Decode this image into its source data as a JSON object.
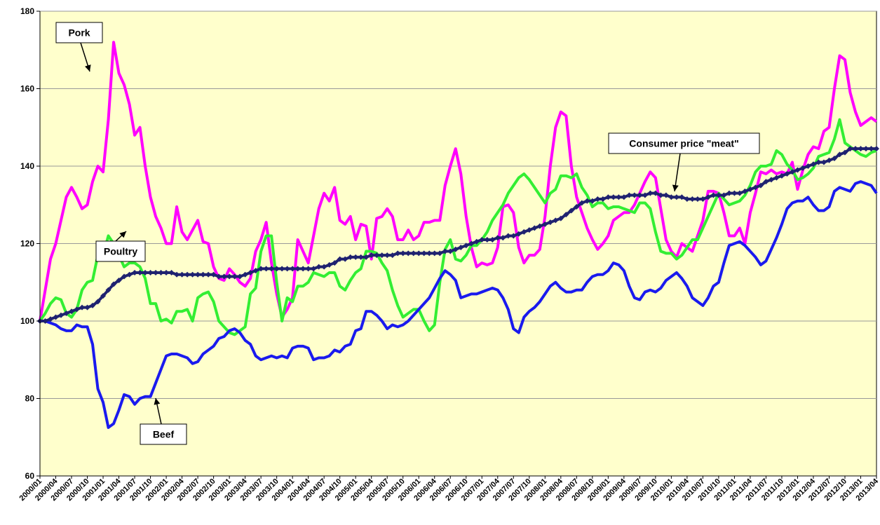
{
  "chart_data": {
    "type": "line",
    "categories": [
      "2000/01",
      null,
      null,
      "2000/04",
      null,
      null,
      "2000/07",
      null,
      null,
      "2000/10",
      null,
      null,
      "2001/01",
      null,
      null,
      "2001/04",
      null,
      null,
      "2001/07",
      null,
      null,
      "2001/10",
      null,
      null,
      "2002/01",
      null,
      null,
      "2002/04",
      null,
      null,
      "2002/07",
      null,
      null,
      "2002/10",
      null,
      null,
      "2003/01",
      null,
      null,
      "2003/04",
      null,
      null,
      "2003/07",
      null,
      null,
      "2003/10",
      null,
      null,
      "2004/01",
      null,
      null,
      "2004/04",
      null,
      null,
      "2004/07",
      null,
      null,
      "2004/10",
      null,
      null,
      "2005/01",
      null,
      null,
      "2005/04",
      null,
      null,
      "2005/07",
      null,
      null,
      "2005/10",
      null,
      null,
      "2006/01",
      null,
      null,
      "2006/04",
      null,
      null,
      "2006/07",
      null,
      null,
      "2006/10",
      null,
      null,
      "2007/01",
      null,
      null,
      "2007/04",
      null,
      null,
      "2007/07",
      null,
      null,
      "2007/10",
      null,
      null,
      "2008/01",
      null,
      null,
      "2008/04",
      null,
      null,
      "2008/07",
      null,
      null,
      "2008/10",
      null,
      null,
      "2009/01",
      null,
      null,
      "2009/04",
      null,
      null,
      "2009/07",
      null,
      null,
      "2009/10",
      null,
      null,
      "2010/01",
      null,
      null,
      "2010/04",
      null,
      null,
      "2010/07",
      null,
      null,
      "2010/10",
      null,
      null,
      "2011/01",
      null,
      null,
      "2011/04",
      null,
      null,
      "2011/07",
      null,
      null,
      "2011/10",
      null,
      null,
      "2012/01",
      null,
      null,
      "2012/04",
      null,
      null,
      "2012/07",
      null,
      null,
      "2012/10",
      null,
      null,
      "2013/01",
      null,
      null,
      "2013/04"
    ],
    "series": [
      {
        "name": "Pork",
        "color": "#ff00ff",
        "values": [
          100,
          108,
          116,
          120,
          126,
          132,
          134.5,
          132,
          129,
          130,
          136,
          140,
          138.5,
          152,
          172,
          164,
          161,
          156,
          148,
          150,
          140,
          132,
          127,
          124,
          120,
          120,
          129.5,
          123,
          121,
          123.5,
          126,
          120.5,
          120,
          114,
          111,
          110.5,
          113.5,
          112,
          110,
          109,
          111,
          118,
          121,
          125.5,
          115,
          107,
          101,
          103,
          106,
          121,
          118,
          115,
          122,
          129,
          133,
          131,
          134.5,
          126,
          125,
          127,
          121,
          125,
          124.5,
          116,
          126.5,
          127,
          129,
          127,
          121,
          121,
          123.5,
          121,
          122,
          125.5,
          125.5,
          126,
          126,
          135,
          140,
          144.5,
          138,
          127,
          119,
          114,
          115,
          114.5,
          115,
          119,
          129.5,
          130,
          128,
          119,
          115,
          117,
          117,
          118.5,
          127,
          140,
          150,
          154,
          153,
          140,
          132,
          128,
          124,
          121,
          118.5,
          120,
          122,
          126,
          127,
          128,
          128,
          130,
          133,
          136,
          138.5,
          137,
          129,
          121,
          118,
          116.5,
          120,
          119,
          118,
          122,
          126,
          133.5,
          133.5,
          133,
          128,
          122,
          122,
          124,
          120,
          128,
          133,
          138.5,
          138,
          139,
          138,
          138.5,
          138,
          141,
          134,
          139,
          143,
          145,
          144.5,
          149,
          150,
          160,
          168.5,
          167.5,
          159,
          154,
          150.5,
          151.5,
          152.5,
          151.5
        ]
      },
      {
        "name": "Poultry",
        "color": "#33ee33",
        "values": [
          100,
          102,
          104.5,
          106,
          105.5,
          102,
          101,
          103,
          108,
          110,
          110.5,
          117,
          117,
          122,
          120,
          117,
          114,
          115,
          115,
          114,
          111,
          104.5,
          104.5,
          100,
          100.5,
          99.5,
          102.5,
          102.5,
          103,
          100,
          106,
          107,
          107.5,
          105,
          100,
          98.5,
          97,
          96.5,
          97.5,
          98.5,
          107,
          108.5,
          118,
          122,
          122,
          110,
          100,
          106,
          105,
          109,
          109,
          110,
          112.5,
          112,
          111.5,
          112.5,
          112.5,
          109,
          108,
          110.5,
          112.5,
          113.5,
          118,
          118,
          117.5,
          115,
          113,
          108,
          104,
          101,
          102,
          103,
          103,
          100,
          97.5,
          99,
          110,
          118.5,
          121,
          116,
          115.5,
          117,
          119.5,
          119.5,
          121,
          123,
          126,
          128,
          130,
          133,
          135,
          137,
          138,
          136.5,
          134.5,
          132.5,
          130.5,
          133,
          134,
          137.5,
          137.5,
          137,
          138,
          134.5,
          132.5,
          129.5,
          130.5,
          130.5,
          129,
          129.5,
          129.5,
          129,
          128.5,
          128,
          130.5,
          130.5,
          129,
          123,
          118,
          117.5,
          117.5,
          116,
          117,
          119,
          121,
          121,
          124,
          127,
          130,
          133,
          131.5,
          130,
          130.5,
          131,
          132.5,
          135,
          138.5,
          140,
          140,
          140.5,
          144,
          143,
          140.5,
          139,
          136.5,
          137,
          138,
          139.5,
          142.5,
          143,
          143.5,
          147,
          152,
          146,
          145,
          144,
          143,
          142.5,
          143.5,
          144
        ]
      },
      {
        "name": "Beef",
        "color": "#1a1aee",
        "values": [
          100,
          100,
          99.5,
          99,
          98,
          97.5,
          97.5,
          99,
          98.5,
          98.5,
          94,
          82.5,
          79,
          72.5,
          73.5,
          77,
          81,
          80.5,
          78.5,
          80,
          80.5,
          80.5,
          84,
          87.5,
          91,
          91.5,
          91.5,
          91,
          90.5,
          89,
          89.5,
          91.5,
          92.5,
          93.5,
          95.5,
          96,
          97.5,
          98,
          97,
          95,
          94,
          91,
          90,
          90.5,
          91,
          90.5,
          91,
          90.5,
          93,
          93.5,
          93.5,
          93,
          90,
          90.5,
          90.5,
          91,
          92.5,
          92,
          93.5,
          94,
          97.5,
          98,
          102.5,
          102.5,
          101.5,
          100,
          98,
          99,
          98.5,
          99,
          100,
          101.5,
          103,
          104.5,
          106,
          108.5,
          111,
          113,
          112,
          110.5,
          106,
          106.5,
          107,
          107,
          107.5,
          108,
          108.5,
          108,
          106,
          103,
          98,
          97,
          101,
          102.5,
          103.5,
          105,
          107,
          109,
          110,
          108.5,
          107.5,
          107.5,
          108,
          108,
          110,
          111.5,
          112,
          112,
          113,
          115,
          114.5,
          113,
          109,
          106,
          105.5,
          107.5,
          108,
          107.5,
          108.5,
          110.5,
          111.5,
          112.5,
          111,
          109,
          106,
          105,
          104,
          106,
          109,
          110,
          115,
          119.5,
          120,
          120.5,
          119.5,
          118,
          116.5,
          114.5,
          115.5,
          118.5,
          121.5,
          125,
          129,
          130.5,
          131,
          131,
          132,
          130,
          128.5,
          128.5,
          129.5,
          133.5,
          134.5,
          134,
          133.5,
          135.5,
          136,
          135.5,
          135,
          133
        ]
      },
      {
        "name": "Consumer price \"meat\"",
        "color": "#1f2270",
        "marker": "diamond",
        "values": [
          100,
          100,
          100.5,
          101,
          101.5,
          102,
          102.5,
          103,
          103.5,
          103.5,
          104,
          105,
          106.5,
          108,
          109.5,
          110.5,
          111.5,
          112,
          112.5,
          112.5,
          112.5,
          112.5,
          112.5,
          112.5,
          112.5,
          112.5,
          112,
          112,
          112,
          112,
          112,
          112,
          112,
          112,
          111.5,
          111.5,
          111.5,
          111.5,
          111.5,
          112,
          112.5,
          113,
          113.5,
          113.5,
          113.5,
          113.5,
          113.5,
          113.5,
          113.5,
          113.5,
          113.5,
          113.5,
          113.5,
          114,
          114,
          114.5,
          115,
          116,
          116,
          116.5,
          116.5,
          116.5,
          116.5,
          117,
          117,
          117,
          117,
          117,
          117.5,
          117.5,
          117.5,
          117.5,
          117.5,
          117.5,
          117.5,
          117.5,
          117.5,
          118,
          118,
          118.5,
          119,
          119.5,
          120,
          120.5,
          121,
          121,
          121,
          121.5,
          121.5,
          122,
          122,
          122.5,
          123,
          123.5,
          124,
          124.5,
          125,
          125.5,
          126,
          126.5,
          127.5,
          128.5,
          129.5,
          130.5,
          131,
          131,
          131.5,
          131.5,
          132,
          132,
          132,
          132,
          132.5,
          132.5,
          132.5,
          132.5,
          133,
          133,
          132.5,
          132.5,
          132,
          132,
          132,
          131.5,
          131.5,
          131.5,
          131.5,
          132,
          132.5,
          132.5,
          132.5,
          133,
          133,
          133,
          133.5,
          134,
          134.5,
          135,
          136,
          136.5,
          137,
          137.5,
          138,
          138.5,
          139,
          139.5,
          140,
          140.5,
          141,
          141,
          141.5,
          142,
          143,
          143.5,
          144.5,
          144.5,
          144.5,
          144.5,
          144.5,
          144.5
        ]
      }
    ],
    "ylim": [
      60,
      180
    ],
    "yticks": [
      60,
      80,
      100,
      120,
      140,
      160,
      180
    ],
    "grid": true,
    "plot_background": "#ffffcc"
  }
}
